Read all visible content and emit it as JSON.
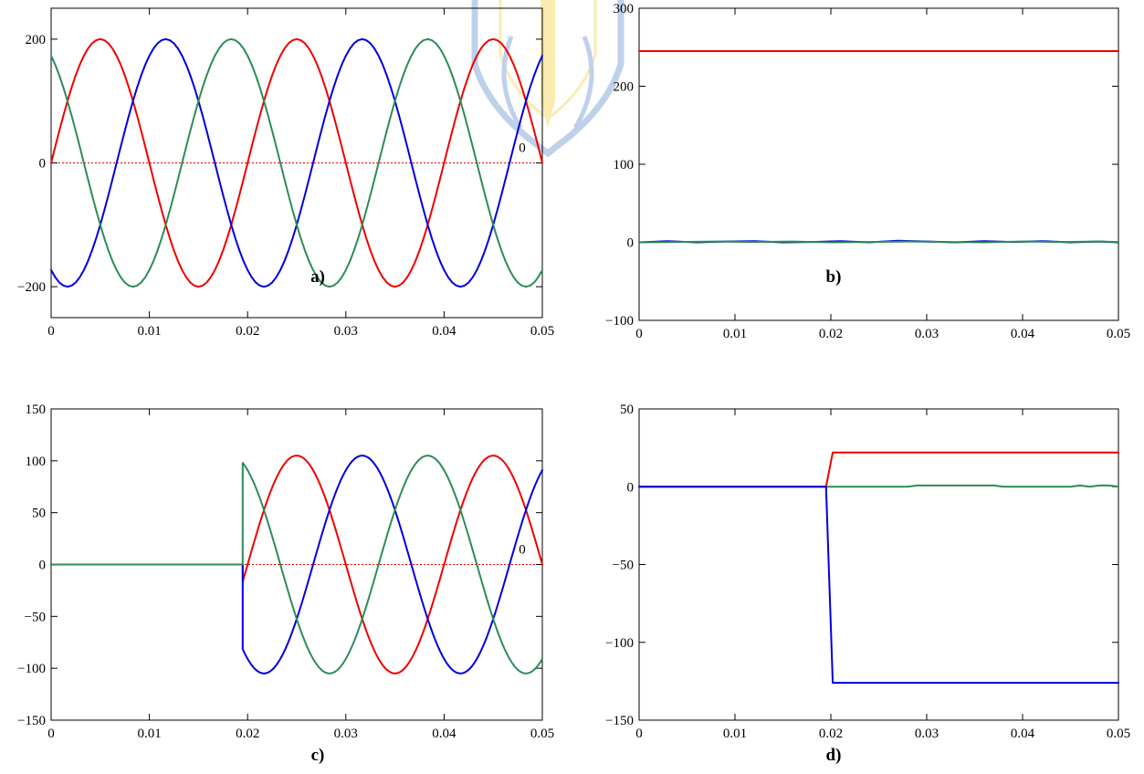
{
  "colors": {
    "red": "#ee0000",
    "blue": "#0000dd",
    "green": "#2e8b57",
    "zero_line": "#ee0000",
    "watermark": "#3a6fc4",
    "watermark_accent": "#f1c40f"
  },
  "chart_data": [
    {
      "id": "a",
      "type": "line",
      "panel_label": "a)",
      "title": "",
      "xlabel": "",
      "ylabel": "",
      "xlim": [
        0,
        0.05
      ],
      "ylim": [
        -250,
        250
      ],
      "xticks": [
        0,
        0.01,
        0.02,
        0.03,
        0.04,
        0.05
      ],
      "xtick_labels": [
        "0",
        "0.01",
        "0.02",
        "0.03",
        "0.04",
        "0.05"
      ],
      "yticks": [
        -200,
        0,
        200
      ],
      "ytick_labels": [
        "−200",
        "0",
        "200"
      ],
      "grid": false,
      "zero_line": true,
      "zero_marker": "0",
      "series": [
        {
          "color": "red",
          "kind": "sine",
          "amplitude": 200,
          "frequency": 50,
          "phase_deg": 0
        },
        {
          "color": "blue",
          "kind": "sine",
          "amplitude": 200,
          "frequency": 50,
          "phase_deg": -120
        },
        {
          "color": "green",
          "kind": "sine",
          "amplitude": 200,
          "frequency": 50,
          "phase_deg": 120
        }
      ]
    },
    {
      "id": "b",
      "type": "line",
      "panel_label": "b)",
      "title": "",
      "xlabel": "",
      "ylabel": "",
      "xlim": [
        0,
        0.05
      ],
      "ylim": [
        -100,
        300
      ],
      "xticks": [
        0,
        0.01,
        0.02,
        0.03,
        0.04,
        0.05
      ],
      "xtick_labels": [
        "0",
        "0.01",
        "0.02",
        "0.03",
        "0.04",
        "0.05"
      ],
      "yticks": [
        -100,
        0,
        100,
        200,
        300
      ],
      "ytick_labels": [
        "−100",
        "0",
        "100",
        "200",
        "300"
      ],
      "grid": false,
      "zero_line": false,
      "series": [
        {
          "color": "red",
          "kind": "points",
          "x": [
            0,
            0.05
          ],
          "y": [
            245,
            245
          ]
        },
        {
          "color": "blue",
          "kind": "points",
          "x": [
            0,
            0.003,
            0.006,
            0.009,
            0.012,
            0.015,
            0.018,
            0.021,
            0.024,
            0.027,
            0.03,
            0.033,
            0.036,
            0.039,
            0.042,
            0.045,
            0.048,
            0.05
          ],
          "y": [
            0,
            1.5,
            0,
            1,
            1.5,
            0,
            0.5,
            1.5,
            0,
            2,
            1,
            0,
            1.5,
            0.5,
            1.5,
            0,
            1,
            0
          ]
        },
        {
          "color": "green",
          "kind": "points",
          "x": [
            0,
            0.004,
            0.008,
            0.012,
            0.016,
            0.02,
            0.024,
            0.028,
            0.032,
            0.036,
            0.04,
            0.044,
            0.048,
            0.05
          ],
          "y": [
            0,
            0.5,
            1,
            0.5,
            1,
            0,
            0.5,
            1,
            0.5,
            0,
            1,
            0.5,
            1,
            0.5
          ]
        }
      ]
    },
    {
      "id": "c",
      "type": "line",
      "panel_label": "c)",
      "title": "",
      "xlabel": "",
      "ylabel": "",
      "xlim": [
        0,
        0.05
      ],
      "ylim": [
        -150,
        150
      ],
      "xticks": [
        0,
        0.01,
        0.02,
        0.03,
        0.04,
        0.05
      ],
      "xtick_labels": [
        "0",
        "0.01",
        "0.02",
        "0.03",
        "0.04",
        "0.05"
      ],
      "yticks": [
        -150,
        -100,
        -50,
        0,
        50,
        100,
        150
      ],
      "ytick_labels": [
        "−150",
        "−100",
        "−50",
        "0",
        "50",
        "100",
        "150"
      ],
      "grid": false,
      "zero_line": true,
      "zero_marker": "0",
      "series": [
        {
          "color": "red",
          "kind": "sine",
          "amplitude": 105,
          "frequency": 50,
          "phase_deg": 0,
          "start": 0.0195,
          "initial": 0
        },
        {
          "color": "blue",
          "kind": "sine",
          "amplitude": 105,
          "frequency": 50,
          "phase_deg": -120,
          "start": 0.0195,
          "initial": 0
        },
        {
          "color": "green",
          "kind": "sine",
          "amplitude": 105,
          "frequency": 50,
          "phase_deg": 120,
          "start": 0.0195,
          "initial": 0
        }
      ]
    },
    {
      "id": "d",
      "type": "line",
      "panel_label": "d)",
      "title": "",
      "xlabel": "",
      "ylabel": "",
      "xlim": [
        0,
        0.05
      ],
      "ylim": [
        -150,
        50
      ],
      "xticks": [
        0,
        0.01,
        0.02,
        0.03,
        0.04,
        0.05
      ],
      "xtick_labels": [
        "0",
        "0.01",
        "0.02",
        "0.03",
        "0.04",
        "0.05"
      ],
      "yticks": [
        -150,
        -100,
        -50,
        0,
        50
      ],
      "ytick_labels": [
        "−150",
        "−100",
        "−50",
        "0",
        "50"
      ],
      "grid": false,
      "zero_line": false,
      "series": [
        {
          "color": "red",
          "kind": "points",
          "x": [
            0,
            0.0195,
            0.0202,
            0.05
          ],
          "y": [
            0,
            0,
            22,
            22
          ]
        },
        {
          "color": "green",
          "kind": "points",
          "x": [
            0,
            0.019,
            0.028,
            0.029,
            0.037,
            0.038,
            0.045,
            0.046,
            0.047,
            0.048,
            0.049,
            0.05
          ],
          "y": [
            0,
            0,
            0,
            0.8,
            0.8,
            0,
            0,
            0.8,
            0,
            0.8,
            0.8,
            0
          ]
        },
        {
          "color": "blue",
          "kind": "points",
          "x": [
            0,
            0.0195,
            0.0202,
            0.05
          ],
          "y": [
            0,
            0,
            -126,
            -126
          ]
        }
      ]
    }
  ]
}
